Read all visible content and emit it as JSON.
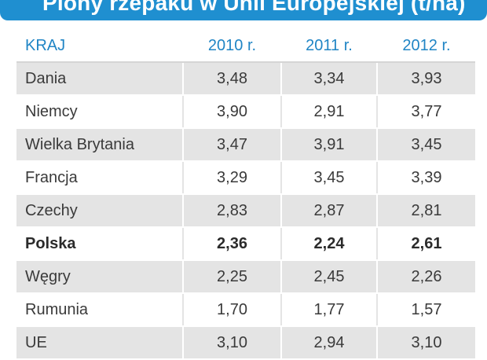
{
  "title": "Plony rzepaku w Unii Europejskiej (t/ha)",
  "table": {
    "headers": [
      "KRAJ",
      "2010 r.",
      "2011 r.",
      "2012 r."
    ],
    "rows": [
      {
        "country": "Dania",
        "values": [
          "3,48",
          "3,34",
          "3,93"
        ],
        "highlight": false
      },
      {
        "country": "Niemcy",
        "values": [
          "3,90",
          "2,91",
          "3,77"
        ],
        "highlight": false
      },
      {
        "country": "Wielka Brytania",
        "values": [
          "3,47",
          "3,91",
          "3,45"
        ],
        "highlight": false
      },
      {
        "country": "Francja",
        "values": [
          "3,29",
          "3,45",
          "3,39"
        ],
        "highlight": false
      },
      {
        "country": "Czechy",
        "values": [
          "2,83",
          "2,87",
          "2,81"
        ],
        "highlight": false
      },
      {
        "country": "Polska",
        "values": [
          "2,36",
          "2,24",
          "2,61"
        ],
        "highlight": true
      },
      {
        "country": "Węgry",
        "values": [
          "2,25",
          "2,45",
          "2,26"
        ],
        "highlight": false
      },
      {
        "country": "Rumunia",
        "values": [
          "1,70",
          "1,77",
          "1,57"
        ],
        "highlight": false
      },
      {
        "country": "UE",
        "values": [
          "3,10",
          "2,94",
          "3,10"
        ],
        "highlight": false
      }
    ]
  },
  "colors": {
    "title_bar": "#1f8fd0",
    "header_text": "#2085c5",
    "row_shade": "#e4e4e4"
  }
}
